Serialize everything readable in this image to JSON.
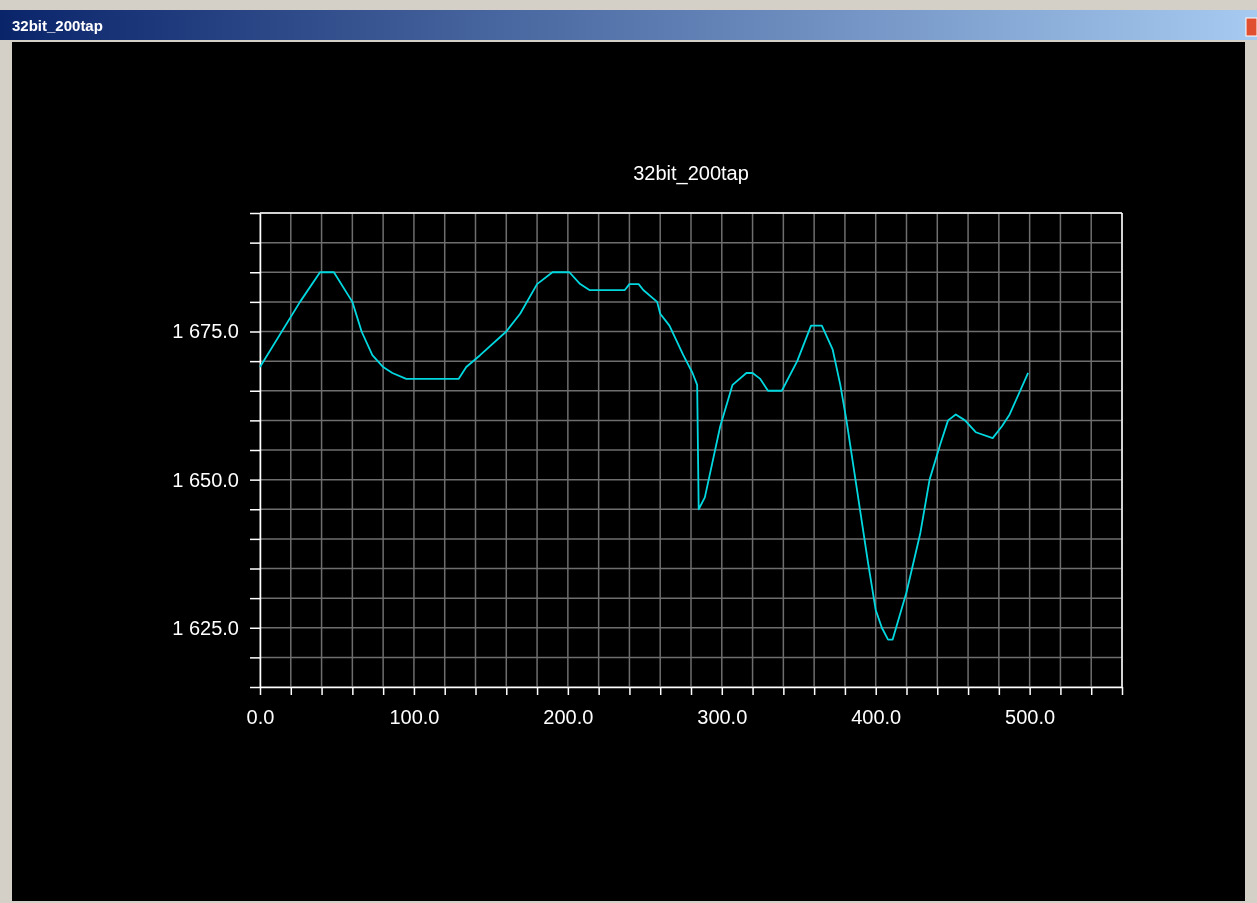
{
  "chart_data": {
    "type": "line",
    "title": "32bit_200tap",
    "annotations": [
      "32bit_200tap"
    ],
    "series": [
      {
        "color": "#00d8e0",
        "x": [
          0,
          26,
          39,
          48,
          60,
          66,
          73,
          80,
          86,
          95,
          129,
          134,
          143,
          160,
          169,
          180,
          190,
          201,
          208,
          214,
          237,
          240,
          246,
          249,
          258,
          260,
          266,
          275,
          281,
          284,
          285,
          289,
          299,
          307,
          316,
          320,
          325,
          330,
          339,
          349,
          358,
          365,
          372,
          377,
          381,
          388,
          395,
          400,
          404,
          408,
          411,
          420,
          429,
          435,
          442,
          447,
          452,
          458,
          465,
          476,
          482,
          487,
          499
        ],
        "values": [
          1669,
          1680,
          1685,
          1685,
          1680,
          1675,
          1671,
          1669,
          1668,
          1667,
          1667,
          1669,
          1671,
          1675,
          1678,
          1683,
          1685,
          1685,
          1683,
          1682,
          1682,
          1683,
          1683,
          1682,
          1680,
          1678,
          1676,
          1671,
          1668,
          1666,
          1645,
          1647,
          1659,
          1666,
          1668,
          1668,
          1667,
          1665,
          1665,
          1670,
          1676,
          1676,
          1672,
          1666,
          1660,
          1648,
          1636,
          1628,
          1625,
          1623,
          1623,
          1631,
          1641,
          1650,
          1656,
          1660,
          1661,
          1660,
          1658,
          1657,
          1659,
          1661,
          1668
        ]
      }
    ],
    "xlim": [
      0,
      560
    ],
    "xticks": [
      {
        "value": 0,
        "label": "0.0"
      },
      {
        "value": 20,
        "label": null
      },
      {
        "value": 40,
        "label": null
      },
      {
        "value": 60,
        "label": null
      },
      {
        "value": 80,
        "label": null
      },
      {
        "value": 100,
        "label": "100.0"
      },
      {
        "value": 120,
        "label": null
      },
      {
        "value": 140,
        "label": null
      },
      {
        "value": 160,
        "label": null
      },
      {
        "value": 180,
        "label": null
      },
      {
        "value": 200,
        "label": "200.0"
      },
      {
        "value": 220,
        "label": null
      },
      {
        "value": 240,
        "label": null
      },
      {
        "value": 260,
        "label": null
      },
      {
        "value": 280,
        "label": null
      },
      {
        "value": 300,
        "label": "300.0"
      },
      {
        "value": 320,
        "label": null
      },
      {
        "value": 340,
        "label": null
      },
      {
        "value": 360,
        "label": null
      },
      {
        "value": 380,
        "label": null
      },
      {
        "value": 400,
        "label": "400.0"
      },
      {
        "value": 420,
        "label": null
      },
      {
        "value": 440,
        "label": null
      },
      {
        "value": 460,
        "label": null
      },
      {
        "value": 480,
        "label": null
      },
      {
        "value": 500,
        "label": "500.0"
      },
      {
        "value": 520,
        "label": null
      },
      {
        "value": 540,
        "label": null
      },
      {
        "value": 560,
        "label": null
      }
    ],
    "ylim": [
      1615,
      1695
    ],
    "yticks": [
      {
        "value": 1615,
        "label": null
      },
      {
        "value": 1620,
        "label": null
      },
      {
        "value": 1625,
        "label": "1 625.0"
      },
      {
        "value": 1630,
        "label": null
      },
      {
        "value": 1635,
        "label": null
      },
      {
        "value": 1640,
        "label": null
      },
      {
        "value": 1645,
        "label": null
      },
      {
        "value": 1650,
        "label": "1 650.0"
      },
      {
        "value": 1655,
        "label": null
      },
      {
        "value": 1660,
        "label": null
      },
      {
        "value": 1665,
        "label": null
      },
      {
        "value": 1670,
        "label": null
      },
      {
        "value": 1675,
        "label": "1 675.0"
      },
      {
        "value": 1680,
        "label": null
      },
      {
        "value": 1685,
        "label": null
      },
      {
        "value": 1690,
        "label": null
      },
      {
        "value": 1695,
        "label": null
      }
    ],
    "grid": true,
    "marker": "none",
    "line_style": "solid"
  }
}
